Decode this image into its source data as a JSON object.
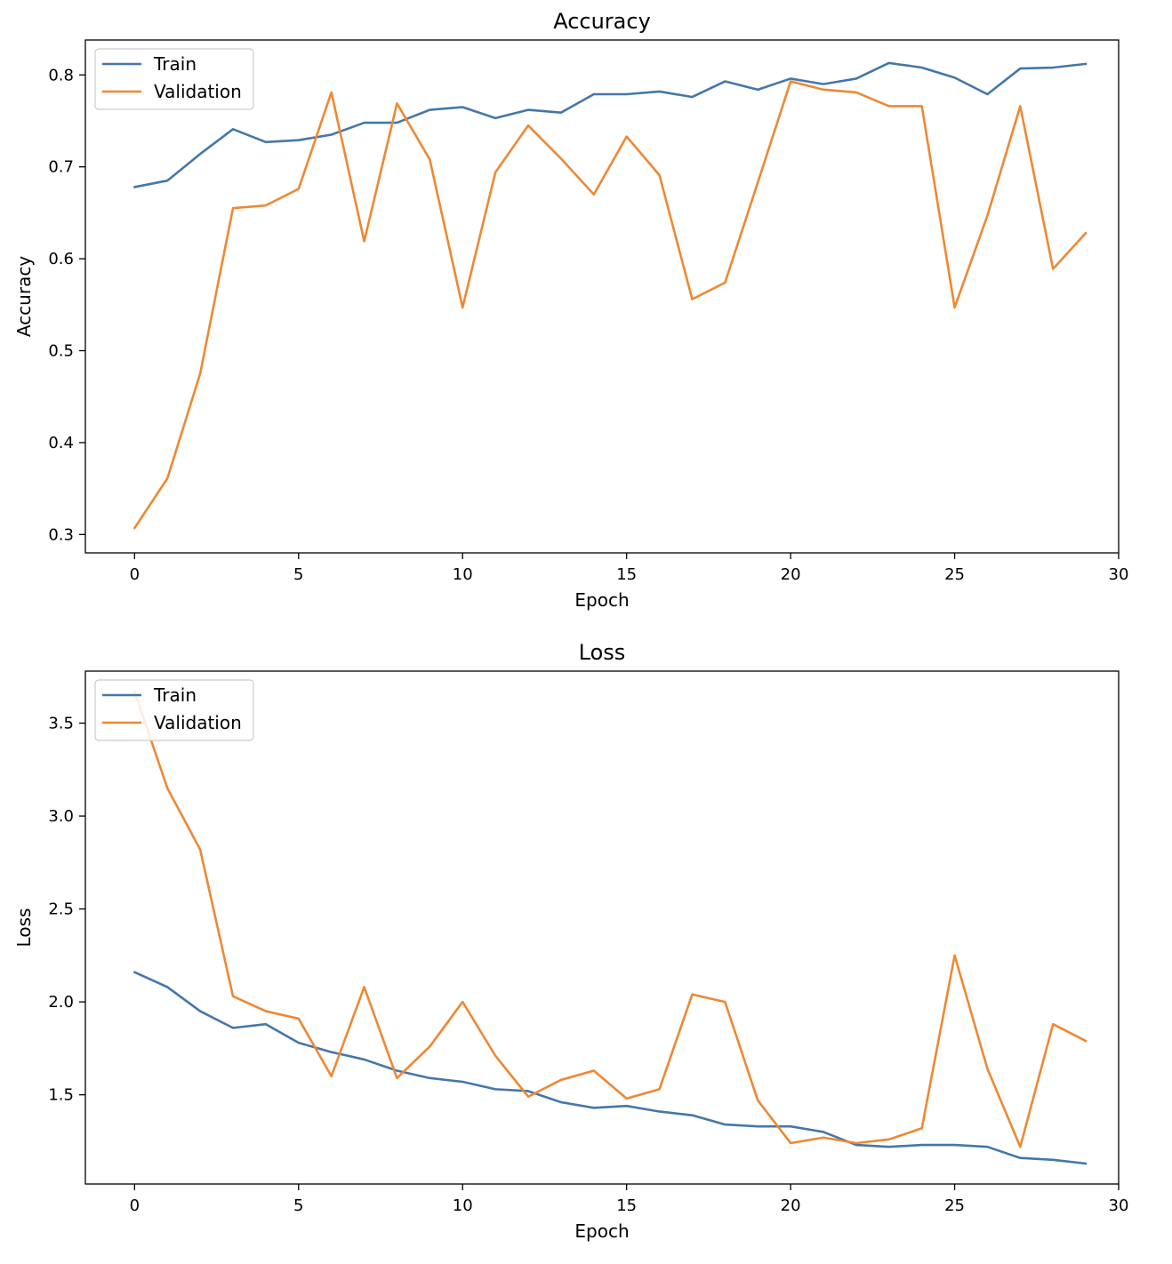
{
  "chart_data": [
    {
      "type": "line",
      "title": "Accuracy",
      "xlabel": "Epoch",
      "ylabel": "Accuracy",
      "xlim": [
        -1.5,
        30
      ],
      "ylim": [
        0.28,
        0.838
      ],
      "xticks": [
        0,
        5,
        10,
        15,
        20,
        25,
        30
      ],
      "yticks": [
        0.3,
        0.4,
        0.5,
        0.6,
        0.7,
        0.8
      ],
      "ytick_labels": [
        "0.3",
        "0.4",
        "0.5",
        "0.6",
        "0.7",
        "0.8"
      ],
      "grid": false,
      "legend_position": "upper left",
      "x": [
        0,
        1,
        2,
        3,
        4,
        5,
        6,
        7,
        8,
        9,
        10,
        11,
        12,
        13,
        14,
        15,
        16,
        17,
        18,
        19,
        20,
        21,
        22,
        23,
        24,
        25,
        26,
        27,
        28,
        29
      ],
      "series": [
        {
          "name": "Train",
          "color": "#4477aa",
          "values": [
            0.678,
            0.685,
            0.714,
            0.741,
            0.727,
            0.729,
            0.735,
            0.748,
            0.748,
            0.762,
            0.765,
            0.753,
            0.762,
            0.759,
            0.779,
            0.779,
            0.782,
            0.776,
            0.793,
            0.784,
            0.796,
            0.79,
            0.796,
            0.813,
            0.808,
            0.797,
            0.779,
            0.807,
            0.808,
            0.812
          ]
        },
        {
          "name": "Validation",
          "color": "#ee8833",
          "values": [
            0.307,
            0.361,
            0.475,
            0.655,
            0.658,
            0.676,
            0.781,
            0.619,
            0.769,
            0.708,
            0.547,
            0.694,
            0.745,
            0.709,
            0.67,
            0.733,
            0.691,
            0.556,
            0.574,
            0.683,
            0.793,
            0.784,
            0.781,
            0.766,
            0.766,
            0.547,
            0.647,
            0.766,
            0.589,
            0.628
          ]
        }
      ]
    },
    {
      "type": "line",
      "title": "Loss",
      "xlabel": "Epoch",
      "ylabel": "Loss",
      "xlim": [
        -1.5,
        30
      ],
      "ylim": [
        1.02,
        3.78
      ],
      "xticks": [
        0,
        5,
        10,
        15,
        20,
        25,
        30
      ],
      "yticks": [
        1.5,
        2.0,
        2.5,
        3.0,
        3.5
      ],
      "ytick_labels": [
        "1.5",
        "2.0",
        "2.5",
        "3.0",
        "3.5"
      ],
      "grid": false,
      "legend_position": "upper left",
      "x": [
        0,
        1,
        2,
        3,
        4,
        5,
        6,
        7,
        8,
        9,
        10,
        11,
        12,
        13,
        14,
        15,
        16,
        17,
        18,
        19,
        20,
        21,
        22,
        23,
        24,
        25,
        26,
        27,
        28,
        29
      ],
      "series": [
        {
          "name": "Train",
          "color": "#4477aa",
          "values": [
            2.16,
            2.08,
            1.95,
            1.86,
            1.88,
            1.78,
            1.73,
            1.69,
            1.63,
            1.59,
            1.57,
            1.53,
            1.52,
            1.46,
            1.43,
            1.44,
            1.41,
            1.39,
            1.34,
            1.33,
            1.33,
            1.3,
            1.23,
            1.22,
            1.23,
            1.23,
            1.22,
            1.16,
            1.15,
            1.13
          ]
        },
        {
          "name": "Validation",
          "color": "#ee8833",
          "values": [
            3.67,
            3.15,
            2.82,
            2.03,
            1.95,
            1.91,
            1.6,
            2.08,
            1.59,
            1.76,
            2.0,
            1.71,
            1.49,
            1.58,
            1.63,
            1.48,
            1.53,
            2.04,
            2.0,
            1.47,
            1.24,
            1.27,
            1.24,
            1.26,
            1.32,
            2.25,
            1.64,
            1.22,
            1.88,
            1.79
          ]
        }
      ]
    }
  ]
}
